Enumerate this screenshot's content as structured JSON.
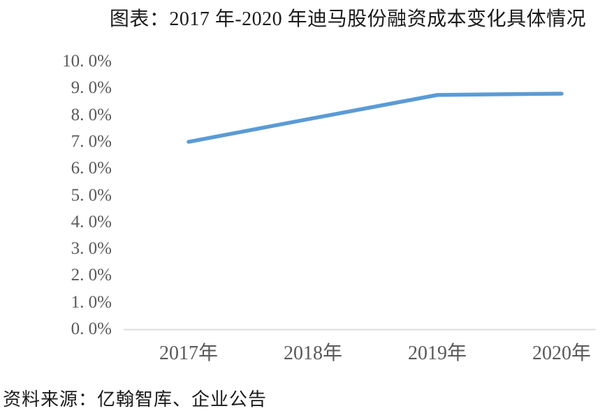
{
  "title": "图表：2017 年-2020 年迪马股份融资成本变化具体情况",
  "source_note": "资料来源：亿翰智库、企业公告",
  "colors": {
    "line": "#5B9BD5",
    "axis_line": "#DCDCDC",
    "tick_text": "#595959",
    "title_text": "#1A1A1A"
  },
  "chart_data": {
    "type": "line",
    "title": "图表：2017 年-2020 年迪马股份融资成本变化具体情况",
    "categories": [
      "2017年",
      "2018年",
      "2019年",
      "2020年"
    ],
    "values": [
      7.0,
      7.88,
      8.75,
      8.8
    ],
    "unit": "percent",
    "xlabel": "",
    "ylabel": "",
    "ylim": [
      0,
      10
    ],
    "ytick_step": 1.0,
    "ytick_labels": [
      "0. 0%",
      "1. 0%",
      "2. 0%",
      "3. 0%",
      "4. 0%",
      "5. 0%",
      "6. 0%",
      "7. 0%",
      "8. 0%",
      "9. 0%",
      "10. 0%"
    ],
    "grid": false,
    "legend": "none",
    "line_color": "#5B9BD5",
    "source": "资料来源：亿翰智库、企业公告"
  }
}
